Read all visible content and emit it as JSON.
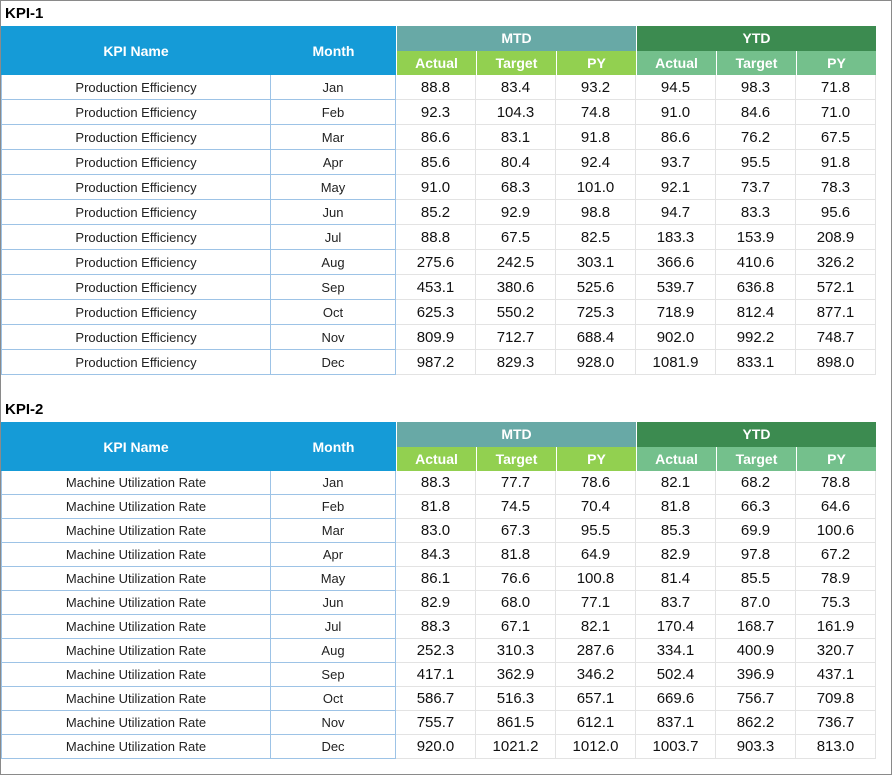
{
  "tables": [
    {
      "title": "KPI-1",
      "header": {
        "kpi_name": "KPI Name",
        "month": "Month",
        "groups": [
          {
            "label": "MTD",
            "columns": [
              "Actual",
              "Target",
              "PY"
            ]
          },
          {
            "label": "YTD",
            "columns": [
              "Actual",
              "Target",
              "PY"
            ]
          }
        ]
      },
      "rows": [
        [
          "Production Efficiency",
          "Jan",
          "88.8",
          "83.4",
          "93.2",
          "94.5",
          "98.3",
          "71.8"
        ],
        [
          "Production Efficiency",
          "Feb",
          "92.3",
          "104.3",
          "74.8",
          "91.0",
          "84.6",
          "71.0"
        ],
        [
          "Production Efficiency",
          "Mar",
          "86.6",
          "83.1",
          "91.8",
          "86.6",
          "76.2",
          "67.5"
        ],
        [
          "Production Efficiency",
          "Apr",
          "85.6",
          "80.4",
          "92.4",
          "93.7",
          "95.5",
          "91.8"
        ],
        [
          "Production Efficiency",
          "May",
          "91.0",
          "68.3",
          "101.0",
          "92.1",
          "73.7",
          "78.3"
        ],
        [
          "Production Efficiency",
          "Jun",
          "85.2",
          "92.9",
          "98.8",
          "94.7",
          "83.3",
          "95.6"
        ],
        [
          "Production Efficiency",
          "Jul",
          "88.8",
          "67.5",
          "82.5",
          "183.3",
          "153.9",
          "208.9"
        ],
        [
          "Production Efficiency",
          "Aug",
          "275.6",
          "242.5",
          "303.1",
          "366.6",
          "410.6",
          "326.2"
        ],
        [
          "Production Efficiency",
          "Sep",
          "453.1",
          "380.6",
          "525.6",
          "539.7",
          "636.8",
          "572.1"
        ],
        [
          "Production Efficiency",
          "Oct",
          "625.3",
          "550.2",
          "725.3",
          "718.9",
          "812.4",
          "877.1"
        ],
        [
          "Production Efficiency",
          "Nov",
          "809.9",
          "712.7",
          "688.4",
          "902.0",
          "992.2",
          "748.7"
        ],
        [
          "Production Efficiency",
          "Dec",
          "987.2",
          "829.3",
          "928.0",
          "1081.9",
          "833.1",
          "898.0"
        ]
      ]
    },
    {
      "title": "KPI-2",
      "header": {
        "kpi_name": "KPI Name",
        "month": "Month",
        "groups": [
          {
            "label": "MTD",
            "columns": [
              "Actual",
              "Target",
              "PY"
            ]
          },
          {
            "label": "YTD",
            "columns": [
              "Actual",
              "Target",
              "PY"
            ]
          }
        ]
      },
      "rows": [
        [
          "Machine Utilization Rate",
          "Jan",
          "88.3",
          "77.7",
          "78.6",
          "82.1",
          "68.2",
          "78.8"
        ],
        [
          "Machine Utilization Rate",
          "Feb",
          "81.8",
          "74.5",
          "70.4",
          "81.8",
          "66.3",
          "64.6"
        ],
        [
          "Machine Utilization Rate",
          "Mar",
          "83.0",
          "67.3",
          "95.5",
          "85.3",
          "69.9",
          "100.6"
        ],
        [
          "Machine Utilization Rate",
          "Apr",
          "84.3",
          "81.8",
          "64.9",
          "82.9",
          "97.8",
          "67.2"
        ],
        [
          "Machine Utilization Rate",
          "May",
          "86.1",
          "76.6",
          "100.8",
          "81.4",
          "85.5",
          "78.9"
        ],
        [
          "Machine Utilization Rate",
          "Jun",
          "82.9",
          "68.0",
          "77.1",
          "83.7",
          "87.0",
          "75.3"
        ],
        [
          "Machine Utilization Rate",
          "Jul",
          "88.3",
          "67.1",
          "82.1",
          "170.4",
          "168.7",
          "161.9"
        ],
        [
          "Machine Utilization Rate",
          "Aug",
          "252.3",
          "310.3",
          "287.6",
          "334.1",
          "400.9",
          "320.7"
        ],
        [
          "Machine Utilization Rate",
          "Sep",
          "417.1",
          "362.9",
          "346.2",
          "502.4",
          "396.9",
          "437.1"
        ],
        [
          "Machine Utilization Rate",
          "Oct",
          "586.7",
          "516.3",
          "657.1",
          "669.6",
          "756.7",
          "709.8"
        ],
        [
          "Machine Utilization Rate",
          "Nov",
          "755.7",
          "861.5",
          "612.1",
          "837.1",
          "862.2",
          "736.7"
        ],
        [
          "Machine Utilization Rate",
          "Dec",
          "920.0",
          "1021.2",
          "1012.0",
          "1003.7",
          "903.3",
          "813.0"
        ]
      ]
    }
  ]
}
